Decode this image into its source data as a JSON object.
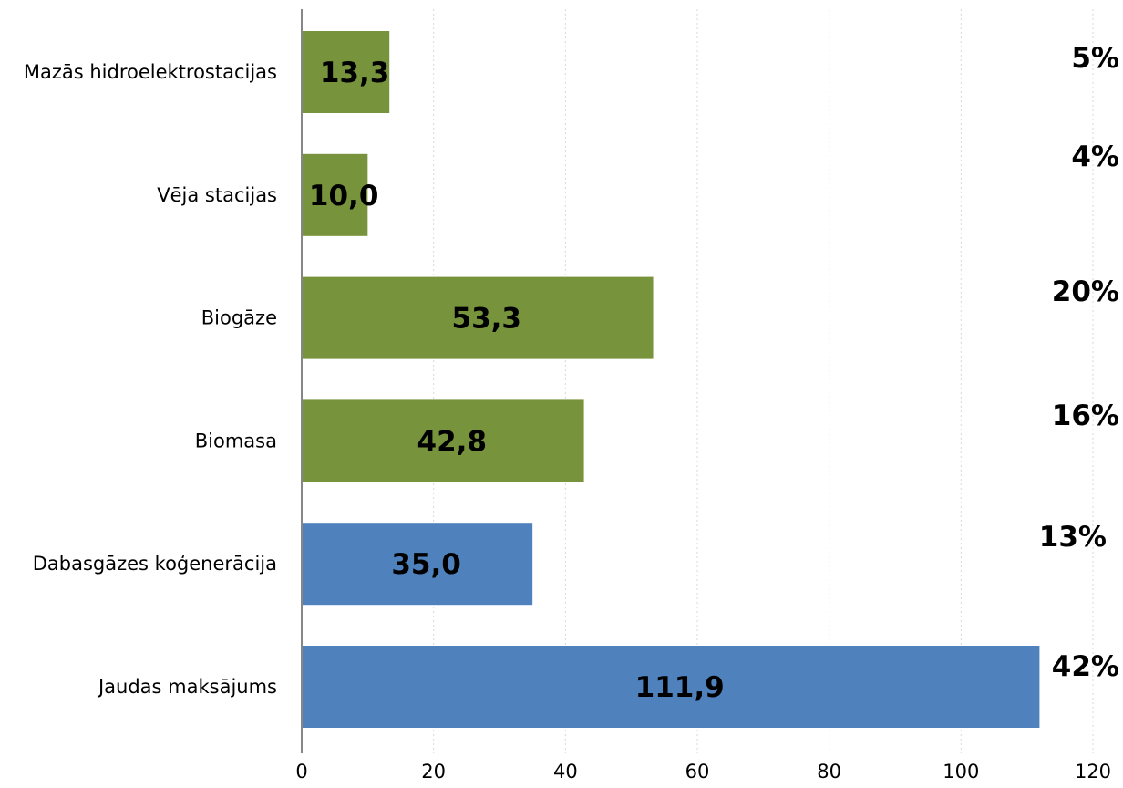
{
  "chart_data": {
    "type": "bar",
    "orientation": "horizontal",
    "categories": [
      "Mazās hidroelektrostacijas",
      "Vēja stacijas",
      "Biogāze",
      "Biomasa",
      "Dabasgāzes koģenerācija",
      "Jaudas maksājums"
    ],
    "values": [
      13.3,
      10.0,
      53.3,
      42.8,
      35.0,
      111.9
    ],
    "value_labels": [
      "13,3",
      "10,0",
      "53,3",
      "42,8",
      "35,0",
      "111,9"
    ],
    "percent_labels": [
      "5%",
      "4%",
      "20%",
      "16%",
      "13%",
      "42%"
    ],
    "bar_colors": [
      "#77933c",
      "#77933c",
      "#77933c",
      "#77933c",
      "#4f81bd",
      "#4f81bd"
    ],
    "xlim": [
      0,
      120
    ],
    "x_ticks": [
      "0",
      "20",
      "40",
      "60",
      "80",
      "100",
      "120"
    ],
    "x_tick_values": [
      0,
      20,
      40,
      60,
      80,
      100,
      120
    ],
    "grid": true,
    "title": "",
    "xlabel": "",
    "ylabel": ""
  }
}
